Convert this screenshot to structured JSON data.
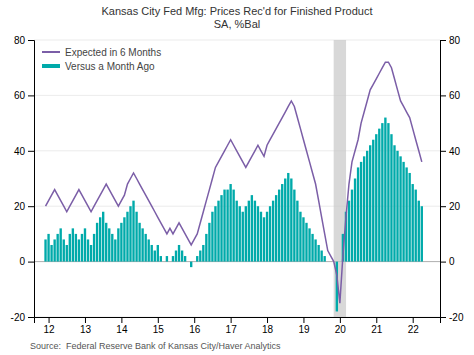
{
  "chart_data": {
    "type": "bar",
    "title": "Kansas City Fed Mfg: Prices Rec'd for Finished Product\nSA, %Bal",
    "annotations": [
      "Source:  Federal Reserve Bank of Kansas City/Haver Analytics"
    ],
    "x": [
      2011.917,
      2012.0,
      2012.083,
      2012.167,
      2012.25,
      2012.333,
      2012.417,
      2012.5,
      2012.583,
      2012.667,
      2012.75,
      2012.833,
      2012.917,
      2013.0,
      2013.083,
      2013.167,
      2013.25,
      2013.333,
      2013.417,
      2013.5,
      2013.583,
      2013.667,
      2013.75,
      2013.833,
      2013.917,
      2014.0,
      2014.083,
      2014.167,
      2014.25,
      2014.333,
      2014.417,
      2014.5,
      2014.583,
      2014.667,
      2014.75,
      2014.833,
      2014.917,
      2015.0,
      2015.083,
      2015.167,
      2015.25,
      2015.333,
      2015.417,
      2015.5,
      2015.583,
      2015.667,
      2015.75,
      2015.833,
      2015.917,
      2016.0,
      2016.083,
      2016.167,
      2016.25,
      2016.333,
      2016.417,
      2016.5,
      2016.583,
      2016.667,
      2016.75,
      2016.833,
      2016.917,
      2017.0,
      2017.083,
      2017.167,
      2017.25,
      2017.333,
      2017.417,
      2017.5,
      2017.583,
      2017.667,
      2017.75,
      2017.833,
      2017.917,
      2018.0,
      2018.083,
      2018.167,
      2018.25,
      2018.333,
      2018.417,
      2018.5,
      2018.583,
      2018.667,
      2018.75,
      2018.833,
      2018.917,
      2019.0,
      2019.083,
      2019.167,
      2019.25,
      2019.333,
      2019.417,
      2019.5,
      2019.583,
      2019.667,
      2019.75,
      2019.833,
      2019.917,
      2020.0,
      2020.083,
      2020.167,
      2020.25,
      2020.333,
      2020.417,
      2020.5,
      2020.583,
      2020.667,
      2020.75,
      2020.833,
      2020.917,
      2021.0,
      2021.083,
      2021.167,
      2021.25,
      2021.333,
      2021.417,
      2021.5,
      2021.583,
      2021.667,
      2021.75,
      2021.833,
      2021.917,
      2022.0,
      2022.083,
      2022.167,
      2022.25
    ],
    "series": [
      {
        "name": "Expected in 6 Months",
        "type": "line",
        "color": "#7B5EA7",
        "values": [
          20,
          22,
          24,
          26,
          24,
          22,
          20,
          18,
          20,
          22,
          24,
          26,
          24,
          22,
          20,
          18,
          20,
          22,
          24,
          26,
          28,
          26,
          24,
          22,
          20,
          22,
          24,
          28,
          30,
          32,
          30,
          28,
          26,
          24,
          22,
          20,
          18,
          16,
          14,
          12,
          10,
          12,
          10,
          12,
          14,
          12,
          10,
          8,
          6,
          8,
          10,
          14,
          18,
          22,
          26,
          30,
          34,
          36,
          38,
          40,
          42,
          44,
          42,
          40,
          38,
          36,
          34,
          36,
          38,
          40,
          42,
          40,
          38,
          42,
          44,
          46,
          48,
          50,
          52,
          54,
          56,
          58,
          56,
          52,
          48,
          44,
          40,
          36,
          32,
          28,
          22,
          16,
          10,
          4,
          2,
          0,
          -5,
          -15,
          2,
          16,
          28,
          36,
          40,
          44,
          50,
          54,
          58,
          62,
          64,
          66,
          68,
          70,
          72,
          72,
          70,
          66,
          62,
          58,
          56,
          54,
          52,
          48,
          44,
          40,
          36
        ]
      },
      {
        "name": "Versus a Month Ago",
        "type": "bar",
        "color": "#00AAAA",
        "values": [
          8,
          10,
          6,
          8,
          10,
          12,
          8,
          6,
          10,
          12,
          10,
          8,
          10,
          12,
          8,
          6,
          10,
          14,
          16,
          18,
          14,
          12,
          10,
          8,
          12,
          14,
          16,
          18,
          20,
          22,
          18,
          14,
          12,
          10,
          8,
          6,
          4,
          6,
          2,
          0,
          2,
          0,
          2,
          4,
          6,
          4,
          2,
          0,
          -2,
          0,
          2,
          4,
          6,
          10,
          14,
          18,
          20,
          22,
          24,
          26,
          26,
          28,
          26,
          22,
          20,
          18,
          20,
          22,
          24,
          22,
          20,
          18,
          16,
          18,
          20,
          22,
          24,
          26,
          28,
          30,
          32,
          30,
          26,
          22,
          18,
          16,
          14,
          12,
          10,
          8,
          6,
          4,
          2,
          0,
          0,
          0,
          -18,
          0,
          10,
          18,
          22,
          26,
          30,
          34,
          36,
          38,
          40,
          42,
          44,
          46,
          48,
          50,
          52,
          50,
          46,
          42,
          40,
          38,
          36,
          34,
          32,
          28,
          26,
          22,
          20
        ]
      }
    ],
    "shaded_region": [
      2019.83,
      2020.17
    ],
    "xlim": [
      2011.6,
      2022.75
    ],
    "xticks": [
      {
        "value": 2012,
        "label": "12"
      },
      {
        "value": 2013,
        "label": "13"
      },
      {
        "value": 2014,
        "label": "14"
      },
      {
        "value": 2015,
        "label": "15"
      },
      {
        "value": 2016,
        "label": "16"
      },
      {
        "value": 2017,
        "label": "17"
      },
      {
        "value": 2018,
        "label": "18"
      },
      {
        "value": 2019,
        "label": "19"
      },
      {
        "value": 2020,
        "label": "20"
      },
      {
        "value": 2021,
        "label": "21"
      },
      {
        "value": 2022,
        "label": "22"
      }
    ],
    "ylim": [
      -20,
      80
    ],
    "yticks": [
      -20,
      0,
      20,
      40,
      60,
      80
    ],
    "y2lim": [
      -20,
      80
    ],
    "y2ticks": [
      -20,
      0,
      20,
      40,
      60,
      80
    ],
    "grid": true,
    "legend": "upper-left"
  }
}
